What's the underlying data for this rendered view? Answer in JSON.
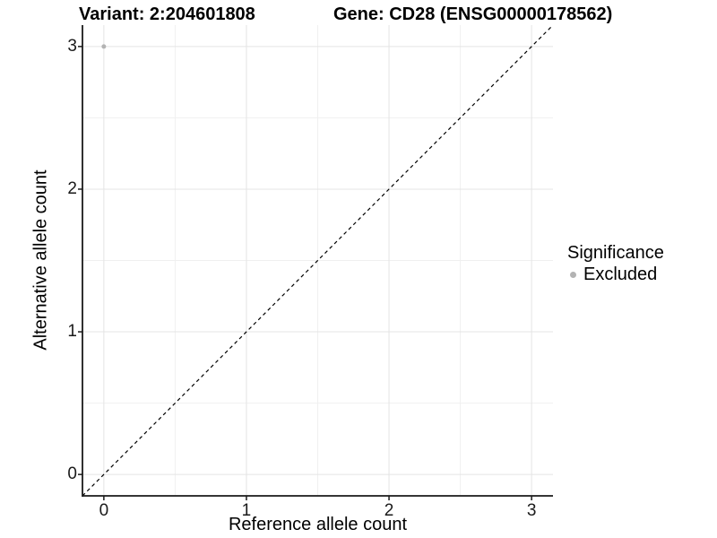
{
  "titles": {
    "variant": "Variant: 2:204601808",
    "gene": "Gene: CD28 (ENSG00000178562)"
  },
  "x_axis": {
    "label": "Reference allele count",
    "ticks": [
      "0",
      "1",
      "2",
      "3"
    ]
  },
  "y_axis": {
    "label": "Alternative allele count",
    "ticks": [
      "0",
      "1",
      "2",
      "3"
    ]
  },
  "legend": {
    "title": "Significance",
    "position": "right",
    "items": [
      {
        "label": "Excluded",
        "marker": "dot-icon",
        "color": "#b3b3b3"
      }
    ]
  },
  "colors": {
    "background": "#ffffff",
    "grid_major": "#e4e4e4",
    "grid_minor": "#f0f0f0",
    "axis": "#1a1a1a",
    "reference_line": "#000000",
    "excluded_point": "#b3b3b3",
    "text": "#000000"
  },
  "chart_data": {
    "type": "scatter",
    "titles": [
      "Variant: 2:204601808",
      "Gene: CD28 (ENSG00000178562)"
    ],
    "xlabel": "Reference allele count",
    "ylabel": "Alternative allele count",
    "xlim": [
      -0.15,
      3.15
    ],
    "ylim": [
      -0.15,
      3.15
    ],
    "x_ticks": [
      0,
      1,
      2,
      3
    ],
    "y_ticks": [
      0,
      1,
      2,
      3
    ],
    "x_minor_gridlines": [
      0.5,
      1.5,
      2.5
    ],
    "y_minor_gridlines": [
      0.5,
      1.5,
      2.5
    ],
    "grid": "major and minor gridlines, light gray on white panel",
    "legend_position": "right",
    "series": [
      {
        "name": "Excluded",
        "color": "#b3b3b3",
        "points": [
          {
            "x": 0,
            "y": 3
          }
        ]
      }
    ],
    "reference_line": {
      "style": "dashed",
      "color": "#000000",
      "from": [
        -0.15,
        -0.15
      ],
      "to": [
        3.15,
        3.15
      ],
      "meaning": "identity line y = x"
    }
  }
}
